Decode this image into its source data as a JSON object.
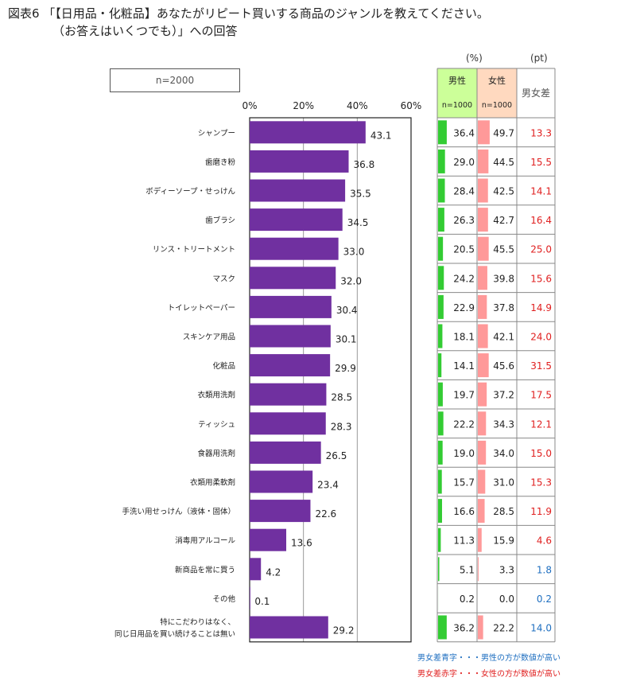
{
  "title": {
    "line1": "図表6 「【日用品・化粧品】あなたがリピート買いする商品のジャンルを教えてください。",
    "line2": "（お答えはいくつでも）」への回答"
  },
  "sample_label": "n=2000",
  "units": {
    "percent": "(%)",
    "points": "(pt)"
  },
  "table_header": {
    "male": "男性",
    "male_n": "n=1000",
    "female": "女性",
    "female_n": "n=1000",
    "diff": "男女差"
  },
  "colors": {
    "bar": "#7030a0",
    "male_bar": "#33cc33",
    "female_bar": "#ff9999",
    "male_header_bg": "#ccff99",
    "female_header_bg": "#ffd9bf",
    "diff_positive": "#e02020",
    "diff_negative": "#1f6fc0"
  },
  "notes": {
    "blue": "男女差青字・・・男性の方が数値が高い",
    "red": "男女差赤字・・・女性の方が数値が高い"
  },
  "chart_data": {
    "type": "bar",
    "orientation": "horizontal",
    "xlim": [
      0,
      60
    ],
    "ticks": [
      "0%",
      "20%",
      "40%",
      "60%"
    ],
    "categories": [
      "シャンプー",
      "歯磨き粉",
      "ボディーソープ・せっけん",
      "歯ブラシ",
      "リンス・トリートメント",
      "マスク",
      "トイレットペーパー",
      "スキンケア用品",
      "化粧品",
      "衣類用洗剤",
      "ティッシュ",
      "食器用洗剤",
      "衣類用柔軟剤",
      "手洗い用せっけん（液体・固体）",
      "消毒用アルコール",
      "新商品を常に買う",
      "その他",
      "特にこだわりはなく、\n同じ日用品を買い続けることは無い"
    ],
    "values": [
      43.1,
      36.8,
      35.5,
      34.5,
      33.0,
      32.0,
      30.4,
      30.1,
      29.9,
      28.5,
      28.3,
      26.5,
      23.4,
      22.6,
      13.6,
      4.2,
      0.1,
      29.2
    ],
    "male": [
      36.4,
      29.0,
      28.4,
      26.3,
      20.5,
      24.2,
      22.9,
      18.1,
      14.1,
      19.7,
      22.2,
      19.0,
      15.7,
      16.6,
      11.3,
      5.1,
      0.2,
      36.2
    ],
    "female": [
      49.7,
      44.5,
      42.5,
      42.7,
      45.5,
      39.8,
      37.8,
      42.1,
      45.6,
      37.2,
      34.3,
      34.0,
      31.0,
      28.5,
      15.9,
      3.3,
      0.0,
      22.2
    ],
    "diff": [
      13.3,
      15.5,
      14.1,
      16.4,
      25.0,
      15.6,
      14.9,
      24.0,
      31.5,
      17.5,
      12.1,
      15.0,
      15.3,
      11.9,
      4.6,
      1.8,
      0.2,
      14.0
    ],
    "diff_sign": [
      "female",
      "female",
      "female",
      "female",
      "female",
      "female",
      "female",
      "female",
      "female",
      "female",
      "female",
      "female",
      "female",
      "female",
      "female",
      "male",
      "male",
      "male"
    ]
  }
}
